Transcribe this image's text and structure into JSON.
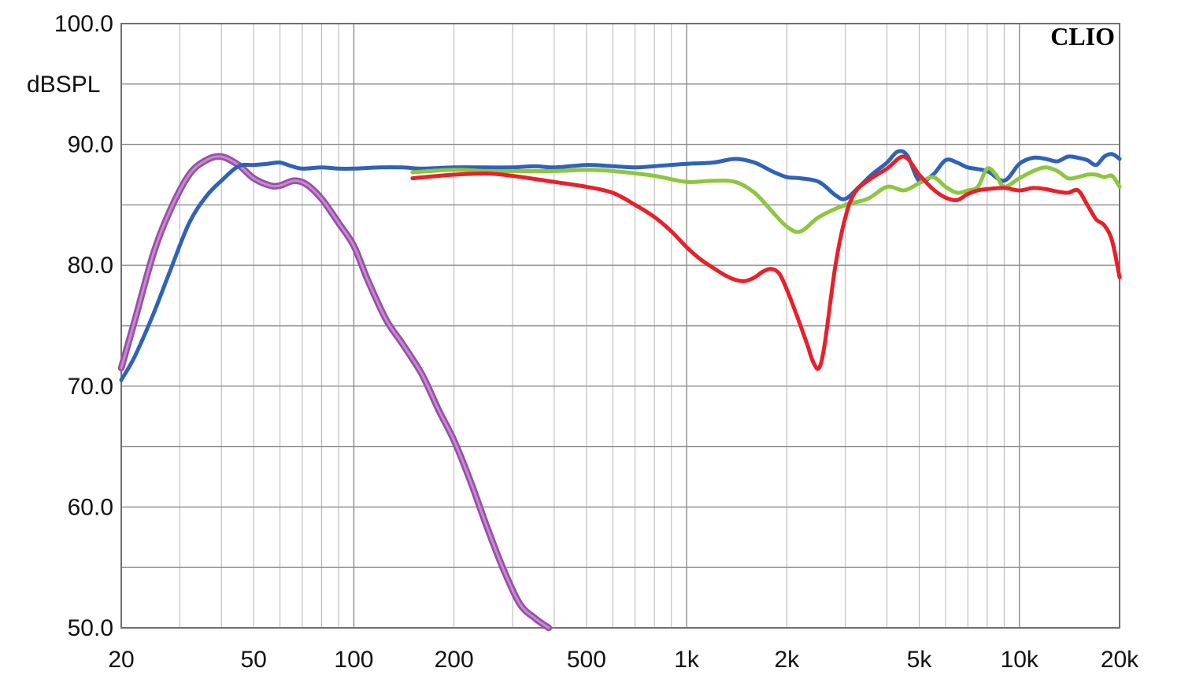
{
  "chart_data": {
    "type": "line",
    "title": "",
    "xlabel": "",
    "ylabel": "dBSPL",
    "brand": "CLIO",
    "x_scale": "log",
    "xlim": [
      20,
      20000
    ],
    "ylim": [
      50,
      100
    ],
    "grid": true,
    "x_ticks": [
      {
        "value": 20,
        "label": "20"
      },
      {
        "value": 50,
        "label": "50"
      },
      {
        "value": 100,
        "label": "100"
      },
      {
        "value": 200,
        "label": "200"
      },
      {
        "value": 500,
        "label": "500"
      },
      {
        "value": 1000,
        "label": "1k"
      },
      {
        "value": 2000,
        "label": "2k"
      },
      {
        "value": 5000,
        "label": "5k"
      },
      {
        "value": 10000,
        "label": "10k"
      },
      {
        "value": 20000,
        "label": "20k"
      }
    ],
    "y_ticks": [
      {
        "value": 50,
        "label": "50.0"
      },
      {
        "value": 60,
        "label": "60.0"
      },
      {
        "value": 70,
        "label": "70.0"
      },
      {
        "value": 80,
        "label": "80.0"
      },
      {
        "value": 90,
        "label": "90.0"
      },
      {
        "value": 100,
        "label": "100.0"
      }
    ],
    "series": [
      {
        "color": "#9a4fa8",
        "x": [
          20,
          22,
          25,
          28,
          32,
          36,
          40,
          45,
          50,
          56,
          60,
          66,
          72,
          80,
          90,
          100,
          110,
          125,
          140,
          160,
          180,
          200,
          225,
          250,
          280,
          315,
          350,
          385
        ],
        "y": [
          71.5,
          75.5,
          81,
          84.5,
          87.5,
          88.7,
          89,
          88.3,
          87.2,
          86.6,
          86.6,
          87,
          86.7,
          85.5,
          83.5,
          81.6,
          78.8,
          75.5,
          73.5,
          71,
          68,
          65.5,
          62,
          58.5,
          55,
          52,
          50.8,
          50
        ]
      },
      {
        "color": "#2f62b8",
        "x": [
          20,
          22,
          25,
          28,
          32,
          36,
          40,
          45,
          50,
          55,
          60,
          65,
          70,
          80,
          90,
          100,
          120,
          140,
          160,
          200,
          250,
          300,
          350,
          400,
          500,
          600,
          700,
          800,
          1000,
          1200,
          1400,
          1600,
          1800,
          2000,
          2200,
          2500,
          2800,
          3000,
          3300,
          3600,
          4000,
          4300,
          4600,
          5000,
          5500,
          6000,
          6500,
          7000,
          8000,
          9000,
          10000,
          11000,
          12000,
          13000,
          14000,
          15000,
          16000,
          17000,
          18000,
          19000,
          20000
        ],
        "y": [
          70.5,
          72.5,
          76,
          79.5,
          83.5,
          85.7,
          87,
          88.2,
          88.3,
          88.4,
          88.5,
          88.2,
          88,
          88.1,
          88,
          88,
          88.1,
          88.1,
          88,
          88.1,
          88.1,
          88.1,
          88.2,
          88.1,
          88.3,
          88.2,
          88.1,
          88.2,
          88.4,
          88.5,
          88.8,
          88.5,
          87.8,
          87.3,
          87.2,
          86.9,
          85.8,
          85.5,
          86.5,
          87.5,
          88.5,
          89.4,
          89.1,
          87,
          87.5,
          88.7,
          88.5,
          88.1,
          87.8,
          87,
          88.4,
          88.9,
          88.8,
          88.6,
          89,
          88.9,
          88.7,
          88.3,
          89,
          89.2,
          88.8
        ]
      },
      {
        "color": "#8dc63f",
        "x": [
          150,
          200,
          250,
          300,
          400,
          500,
          600,
          800,
          1000,
          1200,
          1400,
          1600,
          1800,
          2000,
          2200,
          2500,
          3000,
          3500,
          4000,
          4500,
          5000,
          5500,
          6000,
          6500,
          7000,
          7500,
          8000,
          8500,
          9000,
          10000,
          11000,
          12000,
          13000,
          14000,
          15000,
          16000,
          17000,
          18000,
          19000,
          20000
        ],
        "y": [
          87.7,
          87.9,
          87.8,
          87.8,
          87.8,
          87.9,
          87.8,
          87.4,
          86.9,
          87.0,
          86.9,
          86.0,
          84.5,
          83.2,
          82.8,
          84.0,
          85.0,
          85.5,
          86.5,
          86.2,
          86.8,
          87.3,
          86.5,
          86.0,
          86.2,
          86.5,
          88.0,
          87.5,
          86.5,
          87.2,
          87.8,
          88.1,
          87.8,
          87.2,
          87.3,
          87.5,
          87.5,
          87.3,
          87.4,
          86.5
        ]
      },
      {
        "color": "#e8202a",
        "x": [
          150,
          180,
          200,
          250,
          300,
          400,
          500,
          600,
          700,
          800,
          900,
          1000,
          1100,
          1200,
          1300,
          1400,
          1500,
          1600,
          1700,
          1800,
          1900,
          2000,
          2100,
          2200,
          2300,
          2400,
          2500,
          2600,
          2800,
          3000,
          3200,
          3500,
          4000,
          4500,
          5000,
          5500,
          6000,
          6500,
          7000,
          7500,
          8000,
          9000,
          10000,
          11000,
          12000,
          13000,
          14000,
          15000,
          16000,
          17000,
          18000,
          19000,
          20000
        ],
        "y": [
          87.2,
          87.4,
          87.5,
          87.6,
          87.4,
          86.9,
          86.5,
          86.0,
          85.0,
          84.0,
          82.8,
          81.5,
          80.5,
          79.8,
          79.2,
          78.8,
          78.7,
          79.0,
          79.5,
          79.7,
          79.3,
          78.0,
          76.5,
          75.0,
          73.5,
          72.0,
          71.5,
          73.5,
          80.0,
          84.0,
          86.0,
          87.0,
          88.0,
          89.0,
          87.5,
          86.3,
          85.6,
          85.4,
          85.9,
          86.2,
          86.3,
          86.4,
          86.2,
          86.4,
          86.3,
          86.1,
          86.0,
          86.2,
          85.0,
          83.8,
          83.3,
          82.0,
          79.0
        ]
      }
    ]
  }
}
